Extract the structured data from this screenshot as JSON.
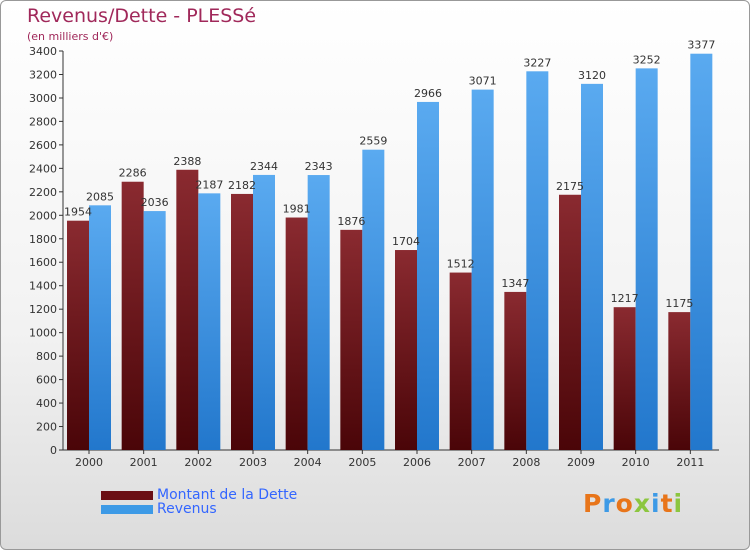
{
  "header": {
    "title": "Revenus/Dette - PLESSé",
    "subtitle": "(en milliers d'€)"
  },
  "chart_data": {
    "type": "bar",
    "categories": [
      "2000",
      "2001",
      "2002",
      "2003",
      "2004",
      "2005",
      "2006",
      "2007",
      "2008",
      "2009",
      "2010",
      "2011"
    ],
    "series": [
      {
        "name": "Montant de la Dette",
        "color": "#6b0f14",
        "values": [
          1954,
          2286,
          2388,
          2182,
          1981,
          1876,
          1704,
          1512,
          1347,
          2175,
          1217,
          1175
        ],
        "labels": [
          "1954",
          "2286",
          "2388",
          "2182",
          "1981",
          "1876",
          "1704",
          "1512",
          "1347",
          "2175",
          "1217",
          "1175"
        ]
      },
      {
        "name": "Revenus",
        "color": "#3d9ae6",
        "values": [
          2085,
          2036,
          2187,
          2344,
          2343,
          2559,
          2966,
          3071,
          3227,
          3120,
          3252,
          3377
        ],
        "labels": [
          "2085",
          "2036",
          "2187",
          "2344",
          "2343",
          "2559",
          "2966",
          "3071",
          "3227",
          "3120",
          "3252",
          "3377"
        ]
      }
    ],
    "ylim": [
      0,
      3400
    ],
    "yticks": [
      0,
      200,
      400,
      600,
      800,
      1000,
      1200,
      1400,
      1600,
      1800,
      2000,
      2200,
      2400,
      2600,
      2800,
      3000,
      3200,
      3400
    ],
    "grid": false,
    "legend_position": "bottom-left"
  },
  "legend": [
    {
      "label": "Montant de la Dette",
      "color": "#6b0f14"
    },
    {
      "label": "Revenus",
      "color": "#3d9ae6"
    }
  ],
  "logo": {
    "letters": [
      "P",
      "r",
      "o",
      "x",
      "i",
      "t",
      "i"
    ],
    "colors": [
      "#e8751a",
      "#3d9ae6",
      "#e8751a",
      "#8cc63f",
      "#3d9ae6",
      "#e8751a",
      "#8cc63f"
    ]
  }
}
